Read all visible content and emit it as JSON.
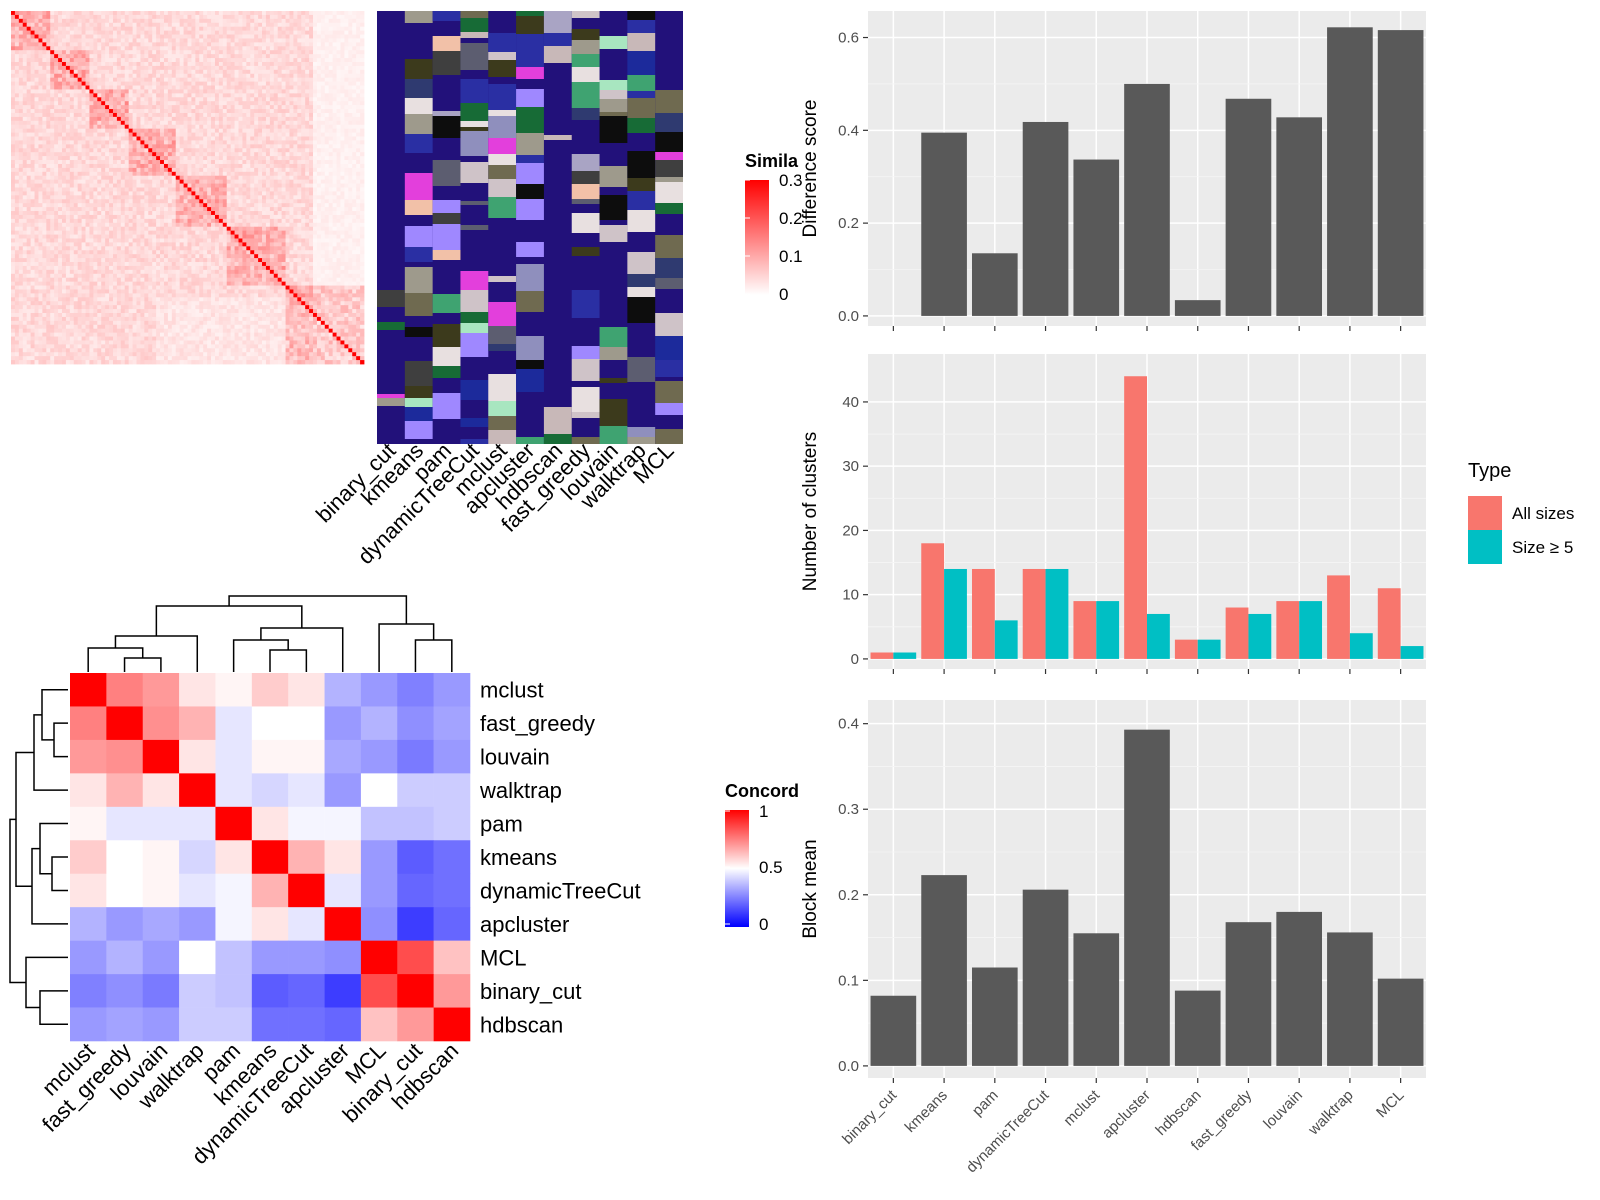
{
  "methods_order": [
    "binary_cut",
    "kmeans",
    "pam",
    "dynamicTreeCut",
    "mclust",
    "apcluster",
    "hdbscan",
    "fast_greedy",
    "louvain",
    "walktrap",
    "MCL"
  ],
  "colors": {
    "bar": "#595959",
    "all_sizes": "#F8766D",
    "size5": "#00BFC4",
    "panel_bg": "#EBEBEB",
    "heat_high": "#FF0000",
    "heat_low": "#0000FF",
    "dark_blue": "#22117a"
  },
  "similarity_legend": {
    "title": "Simila",
    "ticks": [
      "0.3",
      "0.2",
      "0.1",
      "0"
    ]
  },
  "concordance_legend": {
    "title": "Concord",
    "ticks": [
      "1",
      "0.5",
      "0"
    ]
  },
  "concordance": {
    "order": [
      "mclust",
      "fast_greedy",
      "louvain",
      "walktrap",
      "pam",
      "kmeans",
      "dynamicTreeCut",
      "apcluster",
      "MCL",
      "binary_cut",
      "hdbscan"
    ],
    "matrix": [
      [
        1.0,
        0.75,
        0.7,
        0.55,
        0.52,
        0.6,
        0.55,
        0.35,
        0.3,
        0.25,
        0.3
      ],
      [
        0.75,
        1.0,
        0.72,
        0.65,
        0.45,
        0.5,
        0.5,
        0.3,
        0.35,
        0.28,
        0.32
      ],
      [
        0.7,
        0.72,
        1.0,
        0.55,
        0.45,
        0.52,
        0.52,
        0.33,
        0.3,
        0.24,
        0.3
      ],
      [
        0.55,
        0.65,
        0.55,
        1.0,
        0.45,
        0.42,
        0.45,
        0.3,
        0.5,
        0.4,
        0.4
      ],
      [
        0.52,
        0.45,
        0.45,
        0.45,
        1.0,
        0.55,
        0.48,
        0.48,
        0.38,
        0.38,
        0.4
      ],
      [
        0.6,
        0.5,
        0.52,
        0.42,
        0.55,
        1.0,
        0.65,
        0.55,
        0.3,
        0.18,
        0.22
      ],
      [
        0.55,
        0.5,
        0.52,
        0.45,
        0.48,
        0.65,
        1.0,
        0.45,
        0.3,
        0.2,
        0.22
      ],
      [
        0.35,
        0.3,
        0.33,
        0.3,
        0.48,
        0.55,
        0.45,
        1.0,
        0.28,
        0.12,
        0.2
      ],
      [
        0.3,
        0.35,
        0.3,
        0.5,
        0.38,
        0.3,
        0.3,
        0.28,
        1.0,
        0.85,
        0.62
      ],
      [
        0.25,
        0.28,
        0.24,
        0.4,
        0.38,
        0.18,
        0.2,
        0.12,
        0.85,
        1.0,
        0.7
      ],
      [
        0.3,
        0.32,
        0.3,
        0.4,
        0.4,
        0.22,
        0.22,
        0.2,
        0.62,
        0.7,
        1.0
      ]
    ]
  },
  "chart_data": [
    {
      "type": "bar",
      "categories": [
        "binary_cut",
        "kmeans",
        "pam",
        "dynamicTreeCut",
        "mclust",
        "apcluster",
        "hdbscan",
        "fast_greedy",
        "louvain",
        "walktrap",
        "MCL"
      ],
      "values": [
        0.0,
        0.395,
        0.135,
        0.418,
        0.337,
        0.5,
        0.034,
        0.468,
        0.428,
        0.622,
        0.616
      ],
      "ylabel": "Difference score",
      "ylim": [
        0,
        0.63
      ],
      "yticks": [
        "0.0",
        "0.2",
        "0.4",
        "0.6"
      ],
      "grid": true
    },
    {
      "type": "bar",
      "categories": [
        "binary_cut",
        "kmeans",
        "pam",
        "dynamicTreeCut",
        "mclust",
        "apcluster",
        "hdbscan",
        "fast_greedy",
        "louvain",
        "walktrap",
        "MCL"
      ],
      "series": [
        {
          "name": "All sizes",
          "values": [
            1,
            18,
            14,
            14,
            9,
            44,
            3,
            8,
            9,
            13,
            11
          ]
        },
        {
          "name": "Size ≥ 5",
          "values": [
            1,
            14,
            6,
            14,
            9,
            7,
            3,
            7,
            9,
            4,
            2
          ]
        }
      ],
      "ylabel": "Number of clusters",
      "ylim": [
        0,
        45.5
      ],
      "yticks": [
        "0",
        "10",
        "20",
        "30",
        "40"
      ],
      "legend": {
        "title": "Type",
        "position": "right"
      },
      "grid": true
    },
    {
      "type": "bar",
      "categories": [
        "binary_cut",
        "kmeans",
        "pam",
        "dynamicTreeCut",
        "mclust",
        "apcluster",
        "hdbscan",
        "fast_greedy",
        "louvain",
        "walktrap",
        "MCL"
      ],
      "values": [
        0.082,
        0.223,
        0.115,
        0.206,
        0.155,
        0.393,
        0.088,
        0.168,
        0.18,
        0.156,
        0.102
      ],
      "ylabel": "Block mean",
      "ylim": [
        0,
        0.41
      ],
      "yticks": [
        "0.0",
        "0.1",
        "0.2",
        "0.3",
        "0.4"
      ],
      "grid": true
    }
  ]
}
